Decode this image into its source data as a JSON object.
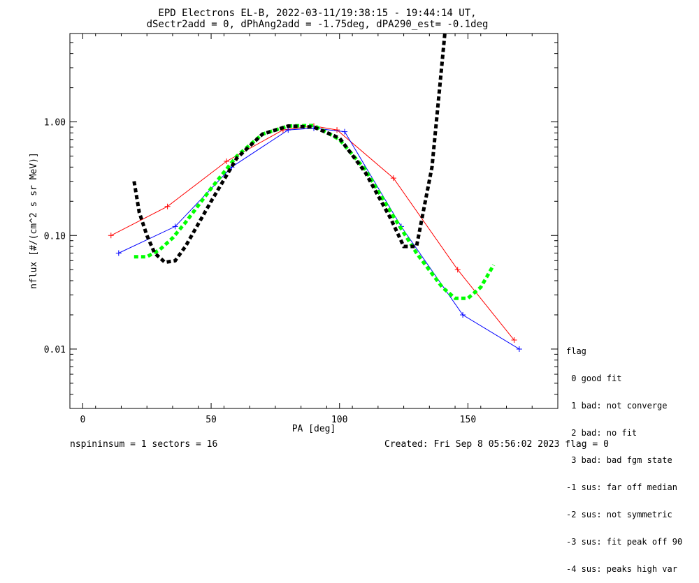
{
  "chart_data": {
    "type": "scatter",
    "title": "EPD Electrons EL-B, 2022-03-11/19:38:15 - 19:44:14 UT,",
    "subtitle": "dSectr2add = 0, dPhAng2add = -1.75deg, dPA290_est=  -0.1deg",
    "xlabel": "PA [deg]",
    "ylabel": "nflux [#/(cm^2 s sr MeV)]",
    "xlim": [
      -5,
      185
    ],
    "ylim": [
      0.003,
      6.0
    ],
    "yscale": "log",
    "x_ticks": [
      0,
      50,
      100,
      150
    ],
    "y_ticks": [
      0.01,
      0.1,
      1.0
    ],
    "y_tick_labels": [
      "0.01",
      "0.10",
      "1.00"
    ],
    "series": [
      {
        "color": "#ff0000",
        "marker": "+",
        "x": [
          11,
          33,
          56,
          78,
          90,
          99,
          121,
          146,
          168
        ],
        "y": [
          0.1,
          0.18,
          0.45,
          0.85,
          0.92,
          0.85,
          0.32,
          0.05,
          0.012
        ]
      },
      {
        "color": "#0000ff",
        "marker": "+",
        "x": [
          14,
          36,
          58,
          80,
          90,
          102,
          124,
          148,
          170
        ],
        "y": [
          0.07,
          0.12,
          0.4,
          0.85,
          0.88,
          0.82,
          0.12,
          0.02,
          0.01
        ]
      },
      {
        "color": "#00ff00",
        "style": "dotted-thick",
        "x": [
          20,
          25,
          30,
          35,
          40,
          50,
          60,
          70,
          80,
          90,
          100,
          110,
          120,
          130,
          140,
          145,
          150,
          155,
          160
        ],
        "y": [
          0.065,
          0.065,
          0.075,
          0.095,
          0.13,
          0.26,
          0.5,
          0.78,
          0.92,
          0.93,
          0.7,
          0.38,
          0.16,
          0.07,
          0.035,
          0.028,
          0.028,
          0.035,
          0.055
        ]
      },
      {
        "color": "#000000",
        "style": "dotted-thick",
        "x": [
          20,
          22,
          25,
          28,
          32,
          36,
          40,
          50,
          60,
          70,
          80,
          90,
          100,
          110,
          120,
          125,
          130,
          133,
          136,
          139,
          141
        ],
        "y": [
          0.3,
          0.16,
          0.1,
          0.07,
          0.058,
          0.06,
          0.08,
          0.2,
          0.48,
          0.78,
          0.92,
          0.9,
          0.72,
          0.36,
          0.14,
          0.08,
          0.08,
          0.18,
          0.4,
          2.0,
          6.0
        ]
      }
    ],
    "legend": {
      "placement": "right",
      "title": "flag",
      "entries": [
        " 0 good fit",
        " 1 bad: not converge",
        " 2 bad: no fit",
        " 3 bad: bad fgm state",
        "-1 sus: far off median",
        "-2 sus: not symmetric",
        "-3 sus: fit peak off 90",
        "-4 sus: peaks high var"
      ]
    },
    "footer_left": "nspininsum =  1  sectors = 16",
    "footer_right": "Created: Fri Sep  8 05:56:02 2023   flag = 0",
    "grid": false
  }
}
